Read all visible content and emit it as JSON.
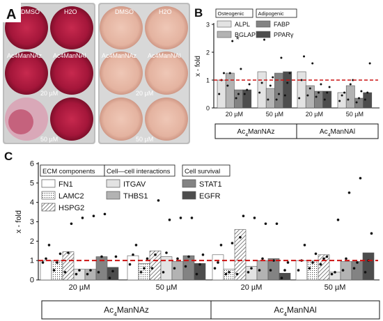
{
  "panels": {
    "a": {
      "label": "A",
      "left_plate": {
        "cells": [
          "DMSO",
          "H2O",
          "Ac4ManNAz",
          "Ac4ManNAl"
        ],
        "conc_1": "20 µM",
        "conc_2": "50 µM"
      },
      "right_plate": {
        "cells": [
          "DMSO",
          "H2O",
          "Ac4ManNAz",
          "Ac4ManNAl"
        ],
        "conc_1": "20 µM",
        "conc_2": "50 µM"
      },
      "colors": {
        "stained": "#b01e44",
        "unstained": "#e7b9a6",
        "plate_bg": "#c9c9c9"
      }
    },
    "b": {
      "label": "B"
    },
    "c": {
      "label": "C"
    }
  },
  "chart_data": [
    {
      "type": "bar",
      "panel": "B",
      "ylabel": "x - fold",
      "ylim": [
        0,
        3
      ],
      "yticks": [
        0,
        1,
        2,
        3
      ],
      "reference_line": 1,
      "reference_color": "#cc1111",
      "categories": [
        "20 µM",
        "50 µM",
        "20 µM",
        "50 µM"
      ],
      "groups": [
        "Ac4ManNAz",
        "Ac4ManNAz",
        "Ac4ManNAl",
        "Ac4ManNAl"
      ],
      "group_labels": [
        "Ac4ManNAz",
        "Ac4ManNAl"
      ],
      "legend_groups": [
        {
          "title": "Osteogenic",
          "items": [
            "ALPL",
            "BGLAP"
          ]
        },
        {
          "title": "Adipogenic",
          "items": [
            "FABP",
            "PPARγ"
          ]
        }
      ],
      "series": [
        {
          "name": "ALPL",
          "color": "#e3e3e3",
          "values": [
            1.0,
            1.3,
            1.3,
            0.55
          ],
          "points": [
            [
              0.5,
              1.0,
              1.25
            ],
            [
              0.55,
              0.9,
              2.45
            ],
            [
              0.35,
              1.0,
              1.85
            ],
            [
              0.25,
              0.45,
              0.55
            ]
          ]
        },
        {
          "name": "BGLAP",
          "color": "#b3b3b3",
          "values": [
            1.25,
            0.7,
            0.8,
            0.8
          ],
          "points": [
            [
              0.8,
              1.25,
              2.4
            ],
            [
              0.3,
              0.8,
              1.1
            ],
            [
              0.45,
              0.7,
              1.6
            ],
            [
              0.3,
              0.85,
              1.0
            ]
          ]
        },
        {
          "name": "FABP",
          "color": "#838383",
          "values": [
            0.65,
            1.25,
            0.6,
            0.35
          ],
          "points": [
            [
              0.35,
              0.5,
              1.4
            ],
            [
              0.3,
              0.5,
              1.8
            ],
            [
              0.4,
              0.55,
              0.85
            ],
            [
              0.2,
              0.35,
              0.6
            ]
          ]
        },
        {
          "name": "PPARγ",
          "color": "#4d4d4d",
          "values": [
            0.65,
            1.3,
            0.6,
            0.55
          ],
          "points": [
            [
              0.5,
              0.65,
              0.85
            ],
            [
              0.45,
              0.9,
              1.25
            ],
            [
              0.3,
              0.55,
              0.75
            ],
            [
              0.3,
              0.55,
              1.6
            ]
          ]
        }
      ],
      "annotations": [
        {
          "text": "*",
          "group": 0,
          "series": 1
        }
      ]
    },
    {
      "type": "bar",
      "panel": "C",
      "ylabel": "x - fold",
      "ylim": [
        0,
        6
      ],
      "yticks": [
        0,
        1,
        2,
        3,
        4,
        5,
        6
      ],
      "reference_line": 1,
      "reference_color": "#cc1111",
      "categories": [
        "20 µM",
        "50 µM",
        "20 µM",
        "50 µM"
      ],
      "groups": [
        "Ac4ManNAz",
        "Ac4ManNAz",
        "Ac4ManNAl",
        "Ac4ManNAl"
      ],
      "group_labels": [
        "Ac4ManNAz",
        "Ac4ManNAl"
      ],
      "legend_groups": [
        {
          "title": "ECM components",
          "items": [
            "FN1",
            "LAMC2",
            "HSPG2"
          ]
        },
        {
          "title": "Cell—cell interactions",
          "items": [
            "ITGAV",
            "THBS1"
          ]
        },
        {
          "title": "Cell survival",
          "items": [
            "STAT1",
            "EGFR"
          ]
        }
      ],
      "series": [
        {
          "name": "FN1",
          "pattern": "white",
          "values": [
            1.0,
            1.25,
            1.3,
            1.0
          ],
          "points": [
            [
              0.9,
              1.1,
              1.8
            ],
            [
              0.8,
              1.3,
              1.8
            ],
            [
              0.6,
              0.9,
              1.8
            ],
            [
              0.5,
              1.0,
              1.8
            ]
          ]
        },
        {
          "name": "LAMC2",
          "pattern": "dots",
          "values": [
            1.0,
            0.85,
            0.55,
            1.0
          ],
          "points": [
            [
              0.5,
              0.9,
              1.35
            ],
            [
              0.4,
              0.6,
              1.1
            ],
            [
              0.3,
              0.4,
              1.9
            ],
            [
              0.6,
              0.9,
              1.35
            ]
          ]
        },
        {
          "name": "HSPG2",
          "pattern": "hatch",
          "values": [
            1.45,
            1.5,
            2.6,
            1.3
          ],
          "points": [
            [
              0.4,
              1.4,
              2.9
            ],
            [
              0.6,
              1.3,
              4.1
            ],
            [
              0.3,
              2.2,
              3.3
            ],
            [
              0.8,
              1.1,
              1.2
            ]
          ]
        },
        {
          "name": "ITGAV",
          "color": "#e3e3e3",
          "values": [
            0.55,
            1.2,
            0.7,
            0.4
          ],
          "points": [
            [
              0.3,
              0.5,
              3.2
            ],
            [
              0.4,
              1.4,
              3.1
            ],
            [
              0.4,
              0.6,
              3.2
            ],
            [
              0.3,
              0.4,
              3.1
            ]
          ]
        },
        {
          "name": "THBS1",
          "color": "#b3b3b3",
          "values": [
            0.55,
            0.95,
            1.0,
            0.95
          ],
          "points": [
            [
              0.3,
              0.5,
              3.3
            ],
            [
              0.6,
              1.1,
              3.2
            ],
            [
              0.5,
              1.1,
              2.9
            ],
            [
              0.5,
              1.1,
              4.5
            ]
          ]
        },
        {
          "name": "STAT1",
          "color": "#838383",
          "values": [
            1.2,
            1.25,
            1.1,
            0.95
          ],
          "points": [
            [
              0.4,
              1.2,
              3.4
            ],
            [
              0.7,
              1.2,
              3.2
            ],
            [
              0.5,
              1.0,
              2.9
            ],
            [
              0.6,
              0.9,
              5.25
            ]
          ]
        },
        {
          "name": "EGFR",
          "color": "#4d4d4d",
          "values": [
            0.65,
            0.85,
            0.35,
            1.4
          ],
          "points": [
            [
              0.1,
              0.45,
              1.2
            ],
            [
              0.3,
              0.8,
              1.3
            ],
            [
              0.1,
              0.5,
              0.9
            ],
            [
              0.4,
              1.0,
              2.4
            ]
          ]
        }
      ]
    }
  ]
}
